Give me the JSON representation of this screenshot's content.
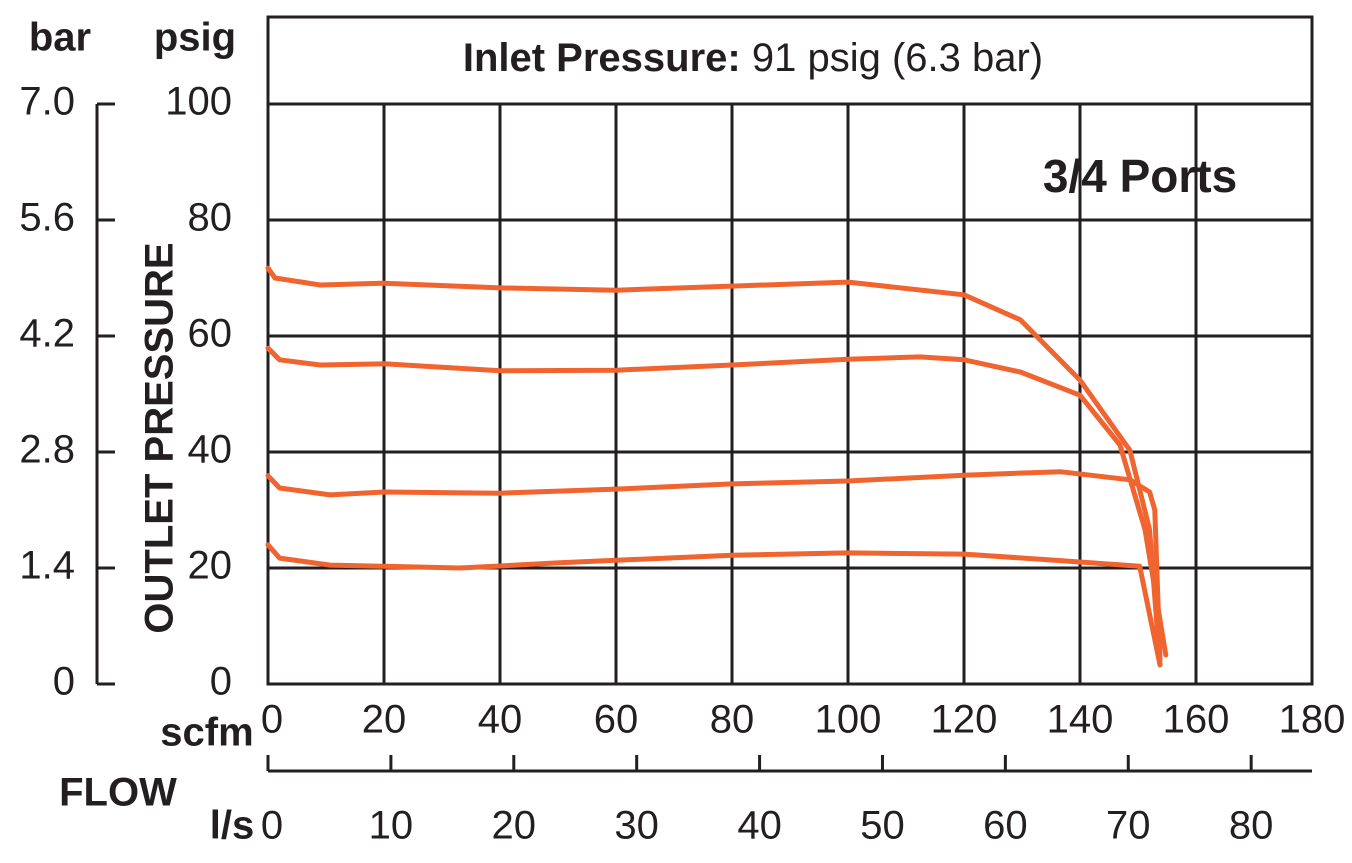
{
  "chart_data": {
    "type": "line",
    "title_label": "Inlet Pressure:",
    "title_value": "91 psig (6.3 bar)",
    "annotation": "3/4 Ports",
    "ylabel": "OUTLET PRESSURE",
    "ylabel_units": "psig",
    "y2label_units": "bar",
    "xlabel": "FLOW",
    "xlabel_units": "scfm",
    "x2label_units": "l/s",
    "xlim": [
      0,
      180
    ],
    "xticks": [
      0,
      20,
      40,
      60,
      80,
      100,
      120,
      140,
      160,
      180
    ],
    "x2lim": [
      0,
      84.95
    ],
    "x2ticks": [
      0,
      10,
      20,
      30,
      40,
      50,
      60,
      70,
      80
    ],
    "ylim": [
      0,
      100
    ],
    "yticks": [
      0,
      20,
      40,
      60,
      80,
      100
    ],
    "y2lim": [
      0,
      7
    ],
    "y2ticks": [
      0,
      1.4,
      2.8,
      4.2,
      5.6,
      {
        "value": 7,
        "label": "7.0"
      }
    ],
    "grid": true,
    "series": [
      {
        "color": "#f0642f",
        "x": [
          0,
          1.2,
          9,
          20,
          40,
          60,
          80,
          100,
          120,
          129.7,
          140,
          148.6,
          152,
          153.8
        ],
        "values": [
          71.7,
          70,
          68.8,
          69.1,
          68.3,
          67.9,
          68.6,
          69.3,
          67.1,
          62.8,
          52.4,
          40.3,
          26.6,
          3.3
        ]
      },
      {
        "color": "#f0642f",
        "x": [
          0,
          2,
          9,
          20,
          40,
          60,
          80,
          100,
          112.4,
          120,
          129.7,
          140,
          146.9,
          151.2,
          154.8
        ],
        "values": [
          57.9,
          55.9,
          55,
          55.2,
          54,
          54.1,
          55,
          56,
          56.4,
          55.9,
          53.8,
          49.8,
          41.2,
          26.6,
          5
        ]
      },
      {
        "color": "#f0642f",
        "x": [
          0,
          2,
          10.7,
          20,
          40,
          60,
          80,
          100,
          120,
          136.6,
          148.6,
          152,
          152.9,
          153.8
        ],
        "values": [
          35.9,
          33.8,
          32.6,
          33.1,
          32.9,
          33.6,
          34.5,
          35,
          36,
          36.6,
          35.2,
          33.1,
          30,
          4.1
        ]
      },
      {
        "color": "#f0642f",
        "x": [
          0,
          2,
          10.7,
          20,
          33.1,
          50.3,
          80,
          100,
          120,
          134.8,
          150.3,
          153.8
        ],
        "values": [
          24,
          21.7,
          20.5,
          20.3,
          20,
          20.9,
          22.2,
          22.6,
          22.4,
          21.4,
          20.3,
          3.3
        ]
      }
    ]
  }
}
